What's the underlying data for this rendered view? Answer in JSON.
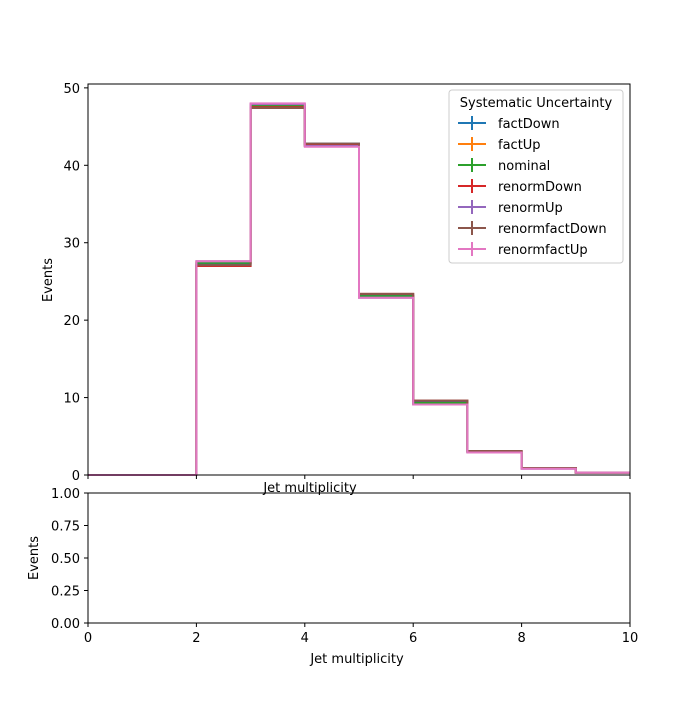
{
  "chart_data": [
    {
      "type": "step",
      "xlabel": "Jet multiplicity",
      "ylabel": "Events",
      "xlim": [
        0,
        10
      ],
      "ylim": [
        0,
        50.5
      ],
      "yticks": [
        "0",
        "10",
        "20",
        "30",
        "40",
        "50"
      ],
      "grid": false,
      "legend_title": "Systematic Uncertainty",
      "legend_position": "top-right",
      "bin_edges": [
        0,
        1,
        2,
        3,
        4,
        5,
        6,
        7,
        8,
        9,
        10
      ],
      "series": [
        {
          "name": "factDown",
          "color": "#1f77b4",
          "values": [
            0,
            0,
            27.3,
            47.6,
            42.8,
            23.2,
            9.4,
            3.0,
            0.9,
            0.3
          ]
        },
        {
          "name": "factUp",
          "color": "#ff7f0e",
          "values": [
            0,
            0,
            27.5,
            47.8,
            42.5,
            23.0,
            9.2,
            3.0,
            0.9,
            0.3
          ]
        },
        {
          "name": "nominal",
          "color": "#2ca02c",
          "values": [
            0,
            0,
            27.4,
            47.7,
            42.6,
            23.1,
            9.3,
            3.0,
            0.9,
            0.3
          ]
        },
        {
          "name": "renormDown",
          "color": "#d62728",
          "values": [
            0,
            0,
            27.0,
            47.5,
            42.7,
            23.4,
            9.6,
            3.1,
            0.9,
            0.3
          ]
        },
        {
          "name": "renormUp",
          "color": "#9467bd",
          "values": [
            0,
            0,
            27.6,
            47.9,
            42.5,
            22.9,
            9.1,
            2.9,
            0.8,
            0.3
          ]
        },
        {
          "name": "renormfactDown",
          "color": "#8c564b",
          "values": [
            0,
            0,
            27.1,
            47.4,
            42.8,
            23.4,
            9.6,
            3.1,
            0.9,
            0.3
          ]
        },
        {
          "name": "renormfactUp",
          "color": "#e377c2",
          "values": [
            0,
            0,
            27.6,
            48.0,
            42.4,
            22.9,
            9.1,
            2.9,
            0.8,
            0.3
          ]
        }
      ]
    },
    {
      "type": "step",
      "xlabel": "Jet multiplicity",
      "ylabel": "Events",
      "xlim": [
        0,
        10
      ],
      "ylim": [
        0,
        1
      ],
      "xticks": [
        "0",
        "2",
        "4",
        "6",
        "8",
        "10"
      ],
      "yticks": [
        "0.00",
        "0.25",
        "0.50",
        "0.75",
        "1.00"
      ],
      "grid": false,
      "series": []
    }
  ]
}
